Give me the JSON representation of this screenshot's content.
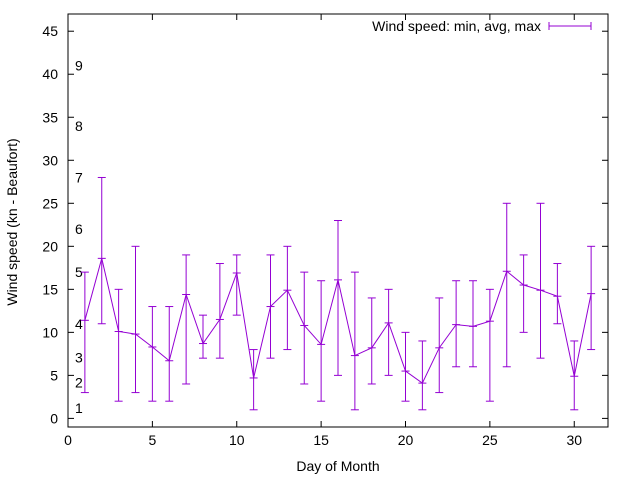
{
  "chart_data": {
    "type": "line",
    "title": "",
    "xlabel": "Day of Month",
    "ylabel": "Wind speed (kn - Beaufort)",
    "xlim": [
      0,
      32
    ],
    "ylim": [
      -1,
      47
    ],
    "xticks": [
      0,
      5,
      10,
      15,
      20,
      25,
      30
    ],
    "yticks": [
      0,
      5,
      10,
      15,
      20,
      25,
      30,
      35,
      40,
      45
    ],
    "grid": false,
    "legend": {
      "label": "Wind speed: min, avg, max",
      "placement": "top-right"
    },
    "color": "#9400d3",
    "beaufort_labels": [
      {
        "label": "1",
        "knots": 1.2
      },
      {
        "label": "2",
        "knots": 4.2
      },
      {
        "label": "3",
        "knots": 7.1
      },
      {
        "label": "4",
        "knots": 11
      },
      {
        "label": "5",
        "knots": 17
      },
      {
        "label": "6",
        "knots": 22
      },
      {
        "label": "7",
        "knots": 28
      },
      {
        "label": "8",
        "knots": 34
      },
      {
        "label": "9",
        "knots": 41
      }
    ],
    "x": [
      1,
      2,
      3,
      4,
      5,
      6,
      7,
      8,
      9,
      10,
      11,
      12,
      13,
      14,
      15,
      16,
      17,
      18,
      19,
      20,
      21,
      22,
      23,
      24,
      25,
      26,
      27,
      28,
      29,
      30,
      31
    ],
    "avg": [
      11.4,
      18.6,
      10.1,
      9.8,
      8.3,
      6.7,
      14.4,
      8.7,
      11.5,
      16.9,
      4.7,
      13,
      14.9,
      10.8,
      8.6,
      16.1,
      7.3,
      8.2,
      11.1,
      5.5,
      4.1,
      8.2,
      10.9,
      10.7,
      11.3,
      17.1,
      15.5,
      14.9,
      14.2,
      4.9,
      14.5
    ],
    "min": [
      3,
      11,
      2,
      3,
      2,
      2,
      4,
      7,
      7,
      12,
      1,
      7,
      8,
      4,
      2,
      5,
      1,
      4,
      5,
      2,
      1,
      3,
      6,
      6,
      2,
      6,
      10,
      7,
      11,
      1,
      8
    ],
    "max": [
      17,
      28,
      15,
      20,
      13,
      13,
      19,
      12,
      18,
      19,
      8,
      19,
      20,
      17,
      16,
      23,
      17,
      14,
      15,
      10,
      9,
      14,
      16,
      16,
      15,
      25,
      19,
      25,
      18,
      9,
      20
    ]
  }
}
